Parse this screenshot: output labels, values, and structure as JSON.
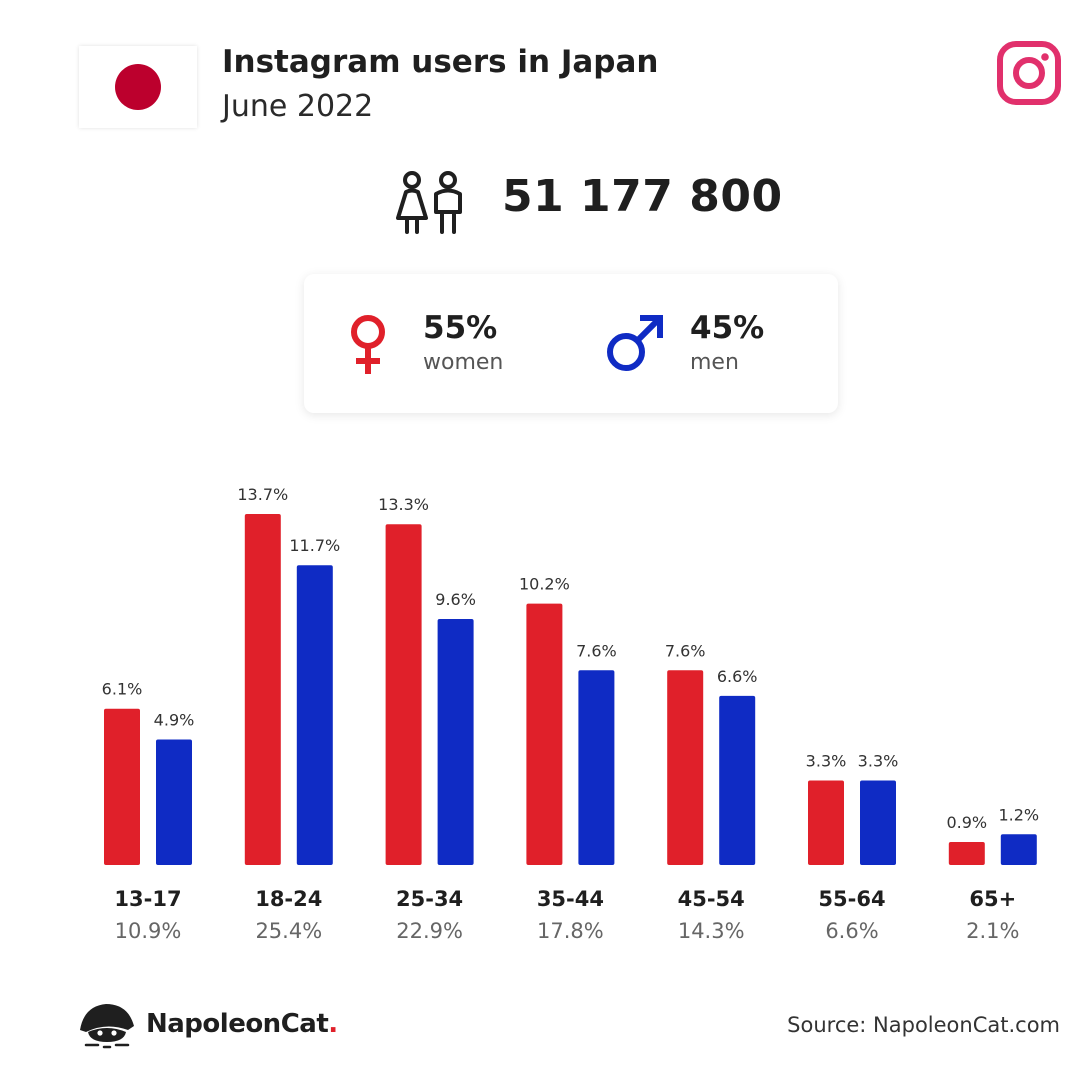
{
  "header": {
    "title": "Instagram users in Japan",
    "subtitle": "June 2022",
    "flag_icon": "japan-flag-icon",
    "logo_icon": "instagram-icon"
  },
  "total": {
    "icon": "people-icon",
    "value": "51 177 800"
  },
  "gender": {
    "women": {
      "icon": "female-symbol-icon",
      "percent": "55%",
      "label": "women"
    },
    "men": {
      "icon": "male-symbol-icon",
      "percent": "45%",
      "label": "men"
    }
  },
  "chart_data": {
    "type": "bar",
    "categories": [
      "13-17",
      "18-24",
      "25-34",
      "35-44",
      "45-54",
      "55-64",
      "65+"
    ],
    "category_totals": [
      "10.9%",
      "25.4%",
      "22.9%",
      "17.8%",
      "14.3%",
      "6.6%",
      "2.1%"
    ],
    "series": [
      {
        "values": [
          6.1,
          13.7,
          13.3,
          10.2,
          7.6,
          3.3,
          0.9
        ],
        "color": "#e0202a"
      },
      {
        "values": [
          4.9,
          11.7,
          9.6,
          7.6,
          6.6,
          3.3,
          1.2
        ],
        "color": "#0f2bc4"
      }
    ],
    "value_labels": [
      [
        "6.1%",
        "13.7%",
        "13.3%",
        "10.2%",
        "7.6%",
        "3.3%",
        "0.9%"
      ],
      [
        "4.9%",
        "11.7%",
        "9.6%",
        "7.6%",
        "6.6%",
        "3.3%",
        "1.2%"
      ]
    ],
    "ylim": [
      0,
      13.7
    ],
    "grid": false,
    "legend": "none"
  },
  "colors": {
    "women": "#e0202a",
    "men": "#0f2bc4",
    "japan_red": "#bc002d",
    "instagram": "#e1306c",
    "brand_dot": "#e0202a"
  },
  "footer": {
    "brand_icon": "napoleoncat-logo-icon",
    "brand_name": "NapoleonCat",
    "brand_dot": ".",
    "source": "Source: NapoleonCat.com"
  }
}
